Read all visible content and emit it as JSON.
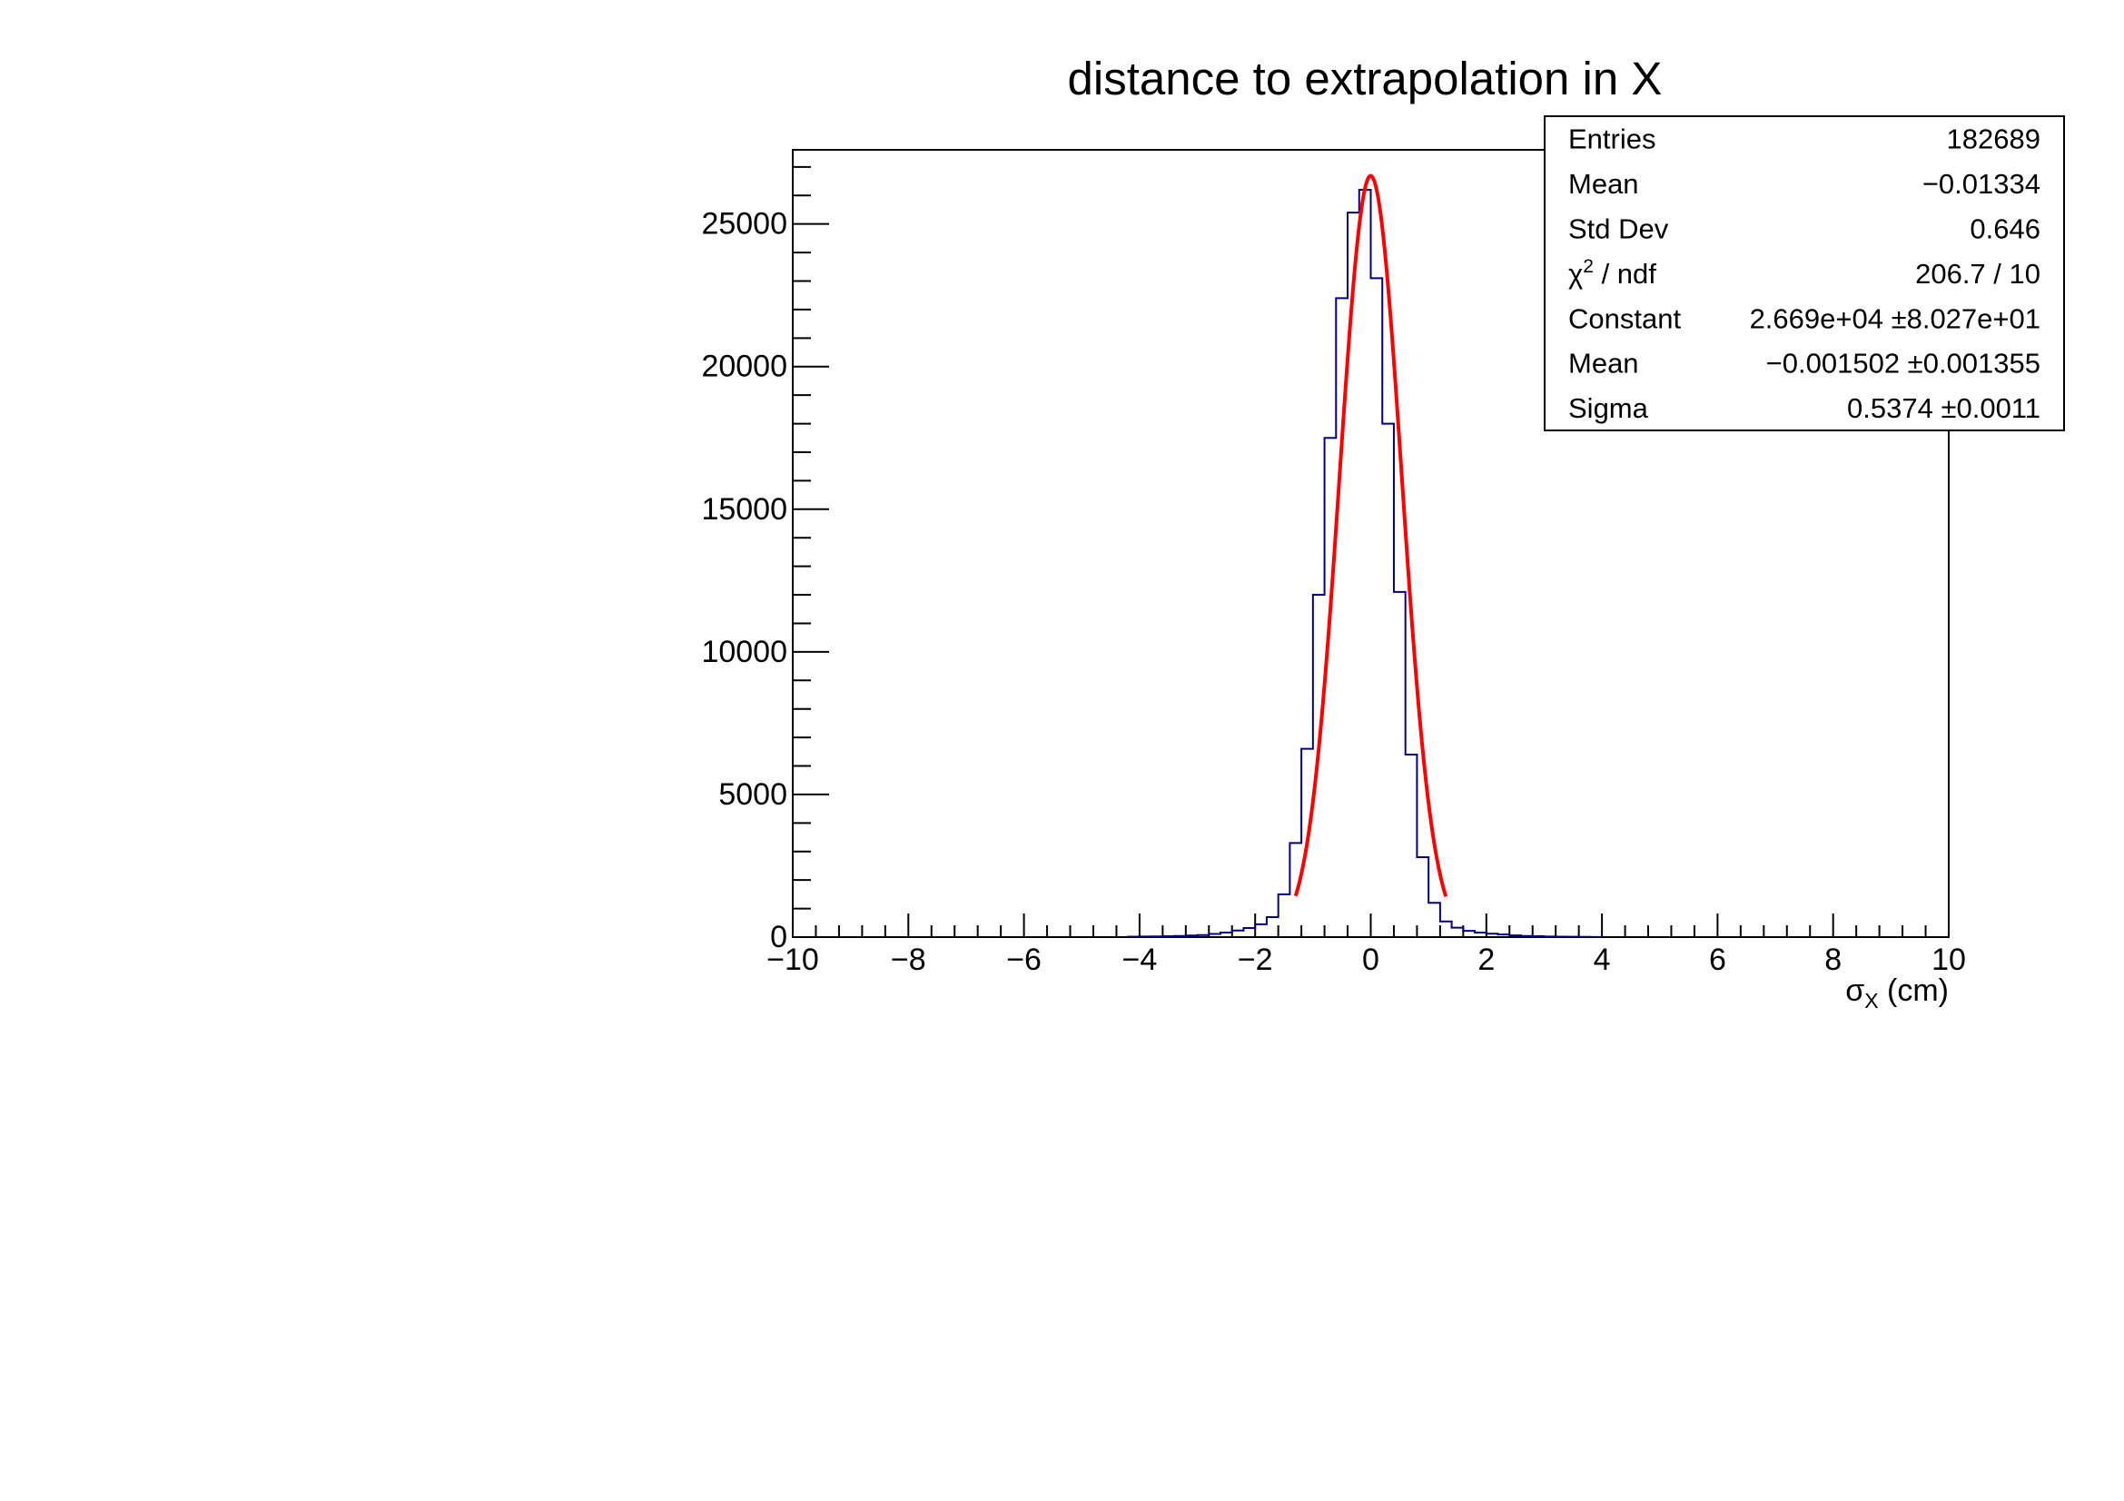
{
  "chart_data": {
    "type": "bar",
    "title": "distance to extrapolation in X",
    "xlabel": {
      "symbol": "σ",
      "subscript": "X",
      "suffix": " (cm)"
    },
    "ylabel": "",
    "xlim": [
      -10,
      10
    ],
    "ylim": [
      0,
      27600
    ],
    "x_ticks": [
      -10,
      -8,
      -6,
      -4,
      -2,
      0,
      2,
      4,
      6,
      8,
      10
    ],
    "x_tick_labels": [
      "−10",
      "−8",
      "−6",
      "−4",
      "−2",
      "0",
      "2",
      "4",
      "6",
      "8",
      "10"
    ],
    "y_ticks": [
      0,
      5000,
      10000,
      15000,
      20000,
      25000
    ],
    "y_tick_labels": [
      "0",
      "5000",
      "10000",
      "15000",
      "20000",
      "25000"
    ],
    "grid": false,
    "histogram": {
      "bin_width": 0.2,
      "line_color": "#000080",
      "bin_low_edges": [
        -4.2,
        -4.0,
        -3.8,
        -3.6,
        -3.4,
        -3.2,
        -3.0,
        -2.8,
        -2.6,
        -2.4,
        -2.2,
        -2.0,
        -1.8,
        -1.6,
        -1.4,
        -1.2,
        -1.0,
        -0.8,
        -0.6,
        -0.4,
        -0.2,
        0.0,
        0.2,
        0.4,
        0.6,
        0.8,
        1.0,
        1.2,
        1.4,
        1.6,
        1.8,
        2.0,
        2.2,
        2.4,
        2.6,
        2.8,
        3.0,
        3.2,
        3.4,
        3.6,
        3.8
      ],
      "values": [
        15,
        20,
        25,
        30,
        40,
        55,
        70,
        110,
        160,
        230,
        320,
        450,
        700,
        1500,
        3300,
        6600,
        12000,
        17500,
        22400,
        25400,
        26200,
        23100,
        18000,
        12100,
        6400,
        2800,
        1200,
        550,
        330,
        220,
        160,
        120,
        90,
        60,
        40,
        30,
        20,
        15,
        10,
        8,
        5
      ]
    },
    "fit": {
      "function": "gaus",
      "color": "#ff0000",
      "constant": 26690,
      "mean": -0.001502,
      "sigma": 0.5374,
      "range": [
        -1.3,
        1.3
      ]
    },
    "legend_placement": "top-right",
    "stats_box": {
      "rows": [
        {
          "label": "Entries",
          "value": "182689"
        },
        {
          "label": "Mean",
          "value": "−0.01334"
        },
        {
          "label": "Std Dev",
          "value": "0.646"
        },
        {
          "label": "χ",
          "sup": "2",
          "label_suffix": " / ndf",
          "value": "206.7 / 10"
        },
        {
          "label": "Constant",
          "value": "2.669e+04 ±8.027e+01"
        },
        {
          "label": "Mean",
          "value": "−0.001502 ±0.001355"
        },
        {
          "label": "Sigma",
          "value": "0.5374 ±0.0011"
        }
      ]
    }
  }
}
